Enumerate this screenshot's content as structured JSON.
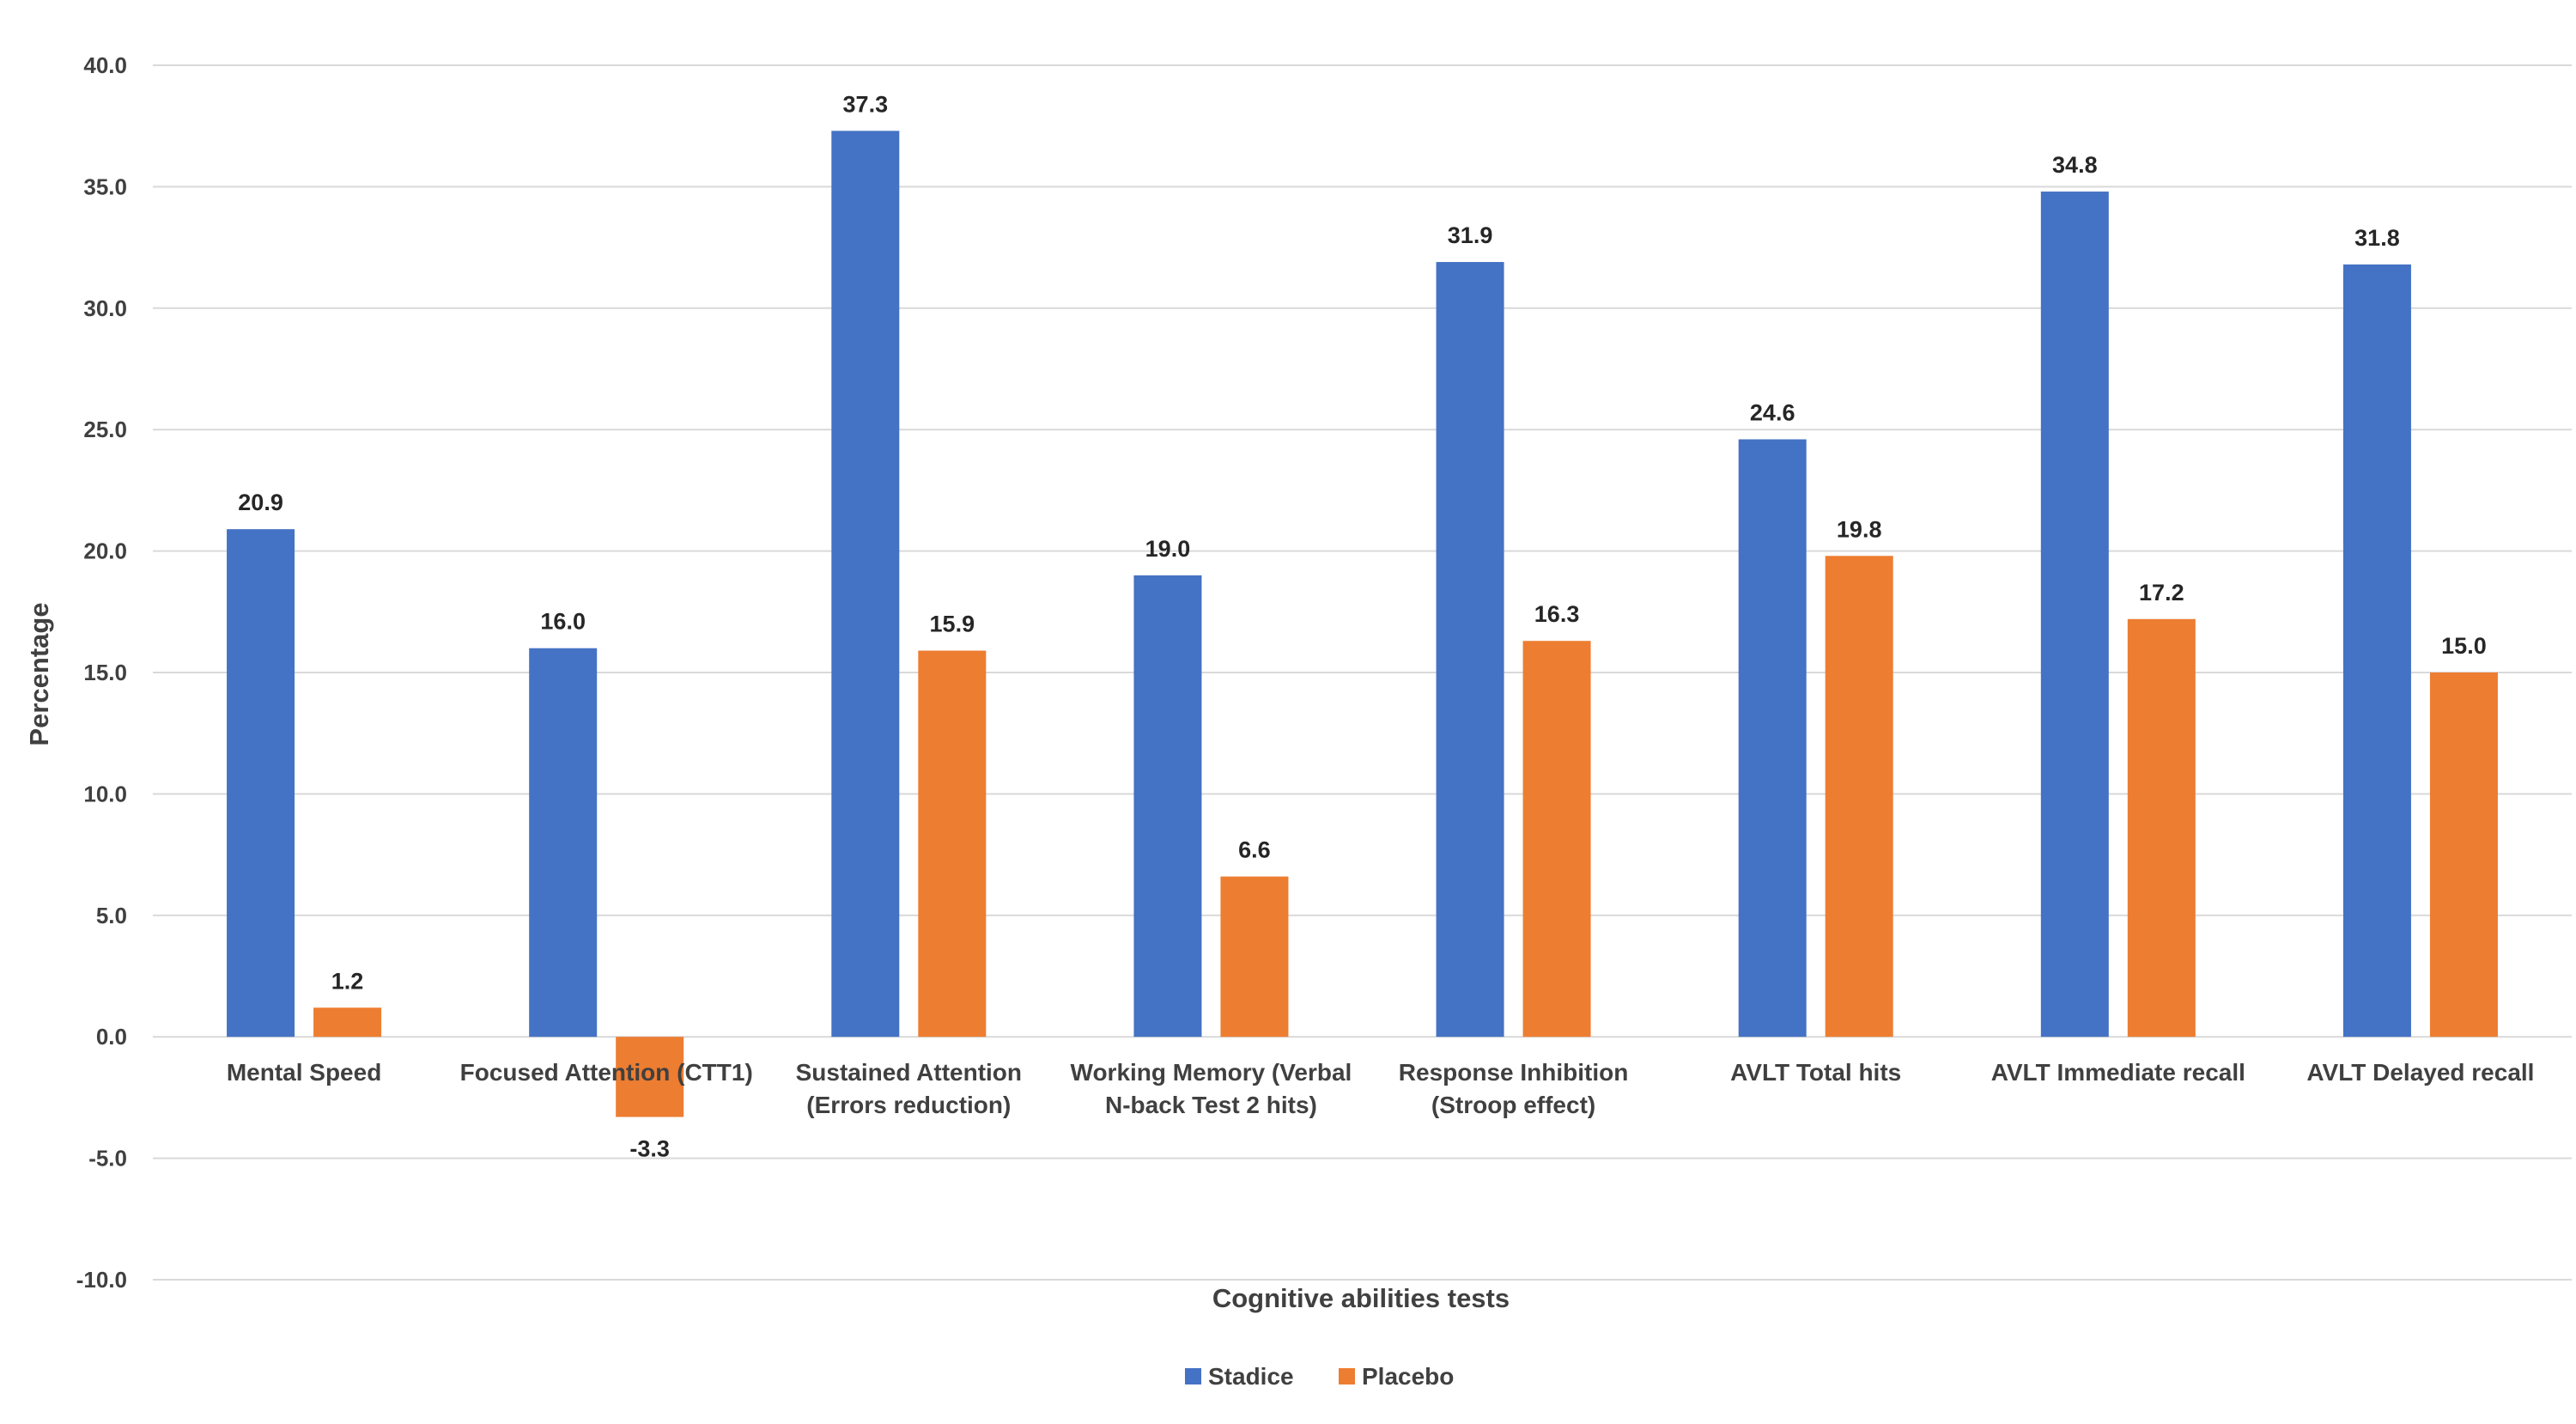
{
  "chart_data": {
    "type": "bar",
    "title": "",
    "xlabel": "Cognitive abilities tests",
    "ylabel": "Percentage",
    "ylim": [
      -10,
      40
    ],
    "ytick_step": 5,
    "grid": true,
    "legend_position": "bottom",
    "categories": [
      [
        "Mental Speed"
      ],
      [
        "Focused Attention (CTT1)"
      ],
      [
        "Sustained Attention",
        "(Errors reduction)"
      ],
      [
        "Working Memory (Verbal",
        "N-back Test 2 hits)"
      ],
      [
        "Response Inhibition",
        "(Stroop effect)"
      ],
      [
        "AVLT Total hits"
      ],
      [
        "AVLT Immediate recall"
      ],
      [
        "AVLT Delayed recall"
      ]
    ],
    "series": [
      {
        "name": "Stadice",
        "color": "#4472C4",
        "values": [
          20.9,
          16.0,
          37.3,
          19.0,
          31.9,
          24.6,
          34.8,
          31.8
        ]
      },
      {
        "name": "Placebo",
        "color": "#ED7D31",
        "values": [
          1.2,
          -3.3,
          15.9,
          6.6,
          16.3,
          19.8,
          17.2,
          15.0
        ]
      }
    ]
  }
}
